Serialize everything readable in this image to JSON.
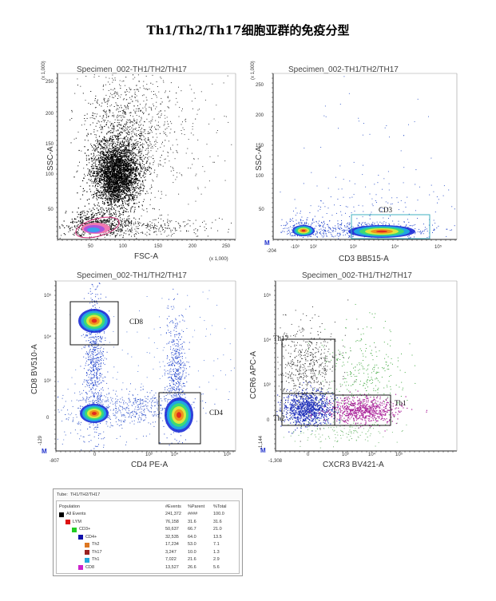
{
  "page_title": "Th1/Th2/Th17细胞亚群的免疫分型",
  "plots": [
    {
      "title": "Specimen_002-TH1/TH2/TH17",
      "xlabel": "FSC-A",
      "ylabel": "SSC-A",
      "x_ticks": [
        "50",
        "100",
        "150",
        "200",
        "250"
      ],
      "x_unit": "(x 1,000)",
      "y_ticks": [
        "50",
        "100",
        "150",
        "200",
        "250"
      ],
      "y_unit": "(x 1,000)",
      "gates": [
        {
          "name": "LYM",
          "color": "#d0307a"
        }
      ]
    },
    {
      "title": "Specimen_002-TH1/TH2/TH17",
      "xlabel": "CD3 BB515-A",
      "ylabel": "SSC-A",
      "x_ticks": [
        "-204",
        "-10³",
        "10²",
        "10³",
        "10⁴",
        "10⁵"
      ],
      "y_ticks": [
        "50",
        "100",
        "150",
        "200",
        "250"
      ],
      "y_unit": "(x 1,000)",
      "gates": [
        {
          "name": "CD3",
          "color": "#40b0c0"
        }
      ]
    },
    {
      "title": "Specimen_002-TH1/TH2/TH17",
      "xlabel": "CD4 PE-A",
      "ylabel": "CD8 BV510-A",
      "x_ticks": [
        "-807",
        "0",
        "10³",
        "10⁴",
        "10⁵"
      ],
      "y_ticks": [
        "-129",
        "0",
        "10³",
        "10⁴",
        "10⁵"
      ],
      "gates": [
        {
          "name": "CD8",
          "color": "#111111"
        },
        {
          "name": "CD4",
          "color": "#111111"
        }
      ]
    },
    {
      "title": "Specimen_002-TH1/TH2/TH17",
      "xlabel": "CXCR3 BV421-A",
      "ylabel": "CCR6 APC-A",
      "x_ticks": [
        "-1,308",
        "0",
        "10³",
        "10⁴",
        "10⁵"
      ],
      "y_ticks": [
        "-1,144",
        "0",
        "10³",
        "10⁴",
        "10⁵"
      ],
      "gates": [
        {
          "name": "Th17",
          "color": "#111111"
        },
        {
          "name": "Th2",
          "color": "#111111"
        },
        {
          "name": "Th1",
          "color": "#111111"
        }
      ]
    }
  ],
  "m_marker": "M",
  "stats_table": {
    "tube_label": "Tube:",
    "tube_value": "TH1/TH2/TH17",
    "headers": [
      "Population",
      "#Events",
      "%Parent",
      "%Total"
    ],
    "rows": [
      {
        "name": "All Events",
        "events": "241,372",
        "parent": "####",
        "total": "100.0",
        "color": "#000000",
        "level": 0
      },
      {
        "name": "LYM",
        "events": "76,158",
        "parent": "31.6",
        "total": "31.6",
        "color": "#dd1111",
        "level": 1
      },
      {
        "name": "CD3+",
        "events": "50,637",
        "parent": "66.7",
        "total": "21.0",
        "color": "#22cc22",
        "level": 2
      },
      {
        "name": "CD4+",
        "events": "32,535",
        "parent": "64.0",
        "total": "13.5",
        "color": "#1111aa",
        "level": 3
      },
      {
        "name": "Th2",
        "events": "17,234",
        "parent": "53.0",
        "total": "7.1",
        "color": "#dd7722",
        "level": 4
      },
      {
        "name": "Th17",
        "events": "3,247",
        "parent": "10.0",
        "total": "1.3",
        "color": "#992222",
        "level": 4
      },
      {
        "name": "Th1",
        "events": "7,022",
        "parent": "21.6",
        "total": "2.9",
        "color": "#22aadd",
        "level": 4
      },
      {
        "name": "CD8",
        "events": "13,527",
        "parent": "26.6",
        "total": "5.6",
        "color": "#cc22cc",
        "level": 3
      }
    ]
  },
  "chart_data": [
    {
      "type": "scatter",
      "title": "Specimen_002-TH1/TH2/TH17",
      "xlabel": "FSC-A",
      "ylabel": "SSC-A",
      "xlim": [
        0,
        262
      ],
      "ylim": [
        0,
        262
      ],
      "populations": [
        {
          "name": "LYM",
          "center": [
            65,
            18
          ],
          "spread": [
            14,
            7
          ],
          "color": "#d0307a"
        },
        {
          "center": [
            100,
            90
          ],
          "spread": [
            20,
            30
          ],
          "color": "#000000"
        }
      ]
    },
    {
      "type": "scatter",
      "title": "Specimen_002-TH1/TH2/TH17",
      "xlabel": "CD3 BB515-A",
      "ylabel": "SSC-A",
      "ylim": [
        0,
        262
      ],
      "populations": [
        {
          "name": "CD3",
          "center_decade": 3.9,
          "ssc": 8,
          "color": "#0033cc"
        },
        {
          "center_decade": 2.0,
          "ssc": 10,
          "color": "#0033cc"
        }
      ]
    },
    {
      "type": "scatter",
      "title": "Specimen_002-TH1/TH2/TH17",
      "xlabel": "CD4 PE-A",
      "ylabel": "CD8 BV510-A",
      "populations": [
        {
          "name": "CD8",
          "events": 13527,
          "color": "#0033cc"
        },
        {
          "name": "CD4",
          "events": 32535,
          "color": "#0033cc"
        }
      ]
    },
    {
      "type": "scatter",
      "title": "Specimen_002-TH1/TH2/TH17",
      "xlabel": "CXCR3 BV421-A",
      "ylabel": "CCR6 APC-A",
      "populations": [
        {
          "name": "Th17",
          "events": 3247,
          "color": "#333333"
        },
        {
          "name": "Th2",
          "events": 17234,
          "color": "#2233bb"
        },
        {
          "name": "Th1",
          "events": 7022,
          "color": "#aa2299"
        }
      ]
    }
  ]
}
